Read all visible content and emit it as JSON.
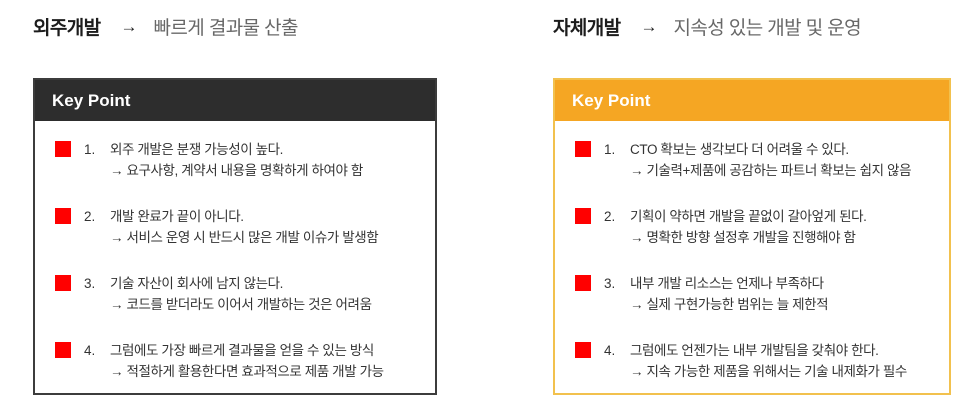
{
  "colors": {
    "left_header_bg": "#2D2D2D",
    "left_panel_border": "#3C3C3C",
    "right_header_bg": "#F5A623",
    "right_panel_border": "#F2C14E",
    "bullet_red": "#FF0000",
    "header_text": "#FFFFFF",
    "title_text": "#1C1C1C",
    "subtitle_text": "#686868",
    "body_text": "#333333",
    "background": "#FFFFFF"
  },
  "panels": [
    {
      "title": "외주개발",
      "arrow": "→",
      "subtitle": "빠르게 결과물 산출",
      "header": "Key Point",
      "items": [
        {
          "num": "1.",
          "line1": "외주 개발은 분쟁 가능성이 높다.",
          "line2": "→ 요구사항, 계약서 내용을 명확하게 하여야 함"
        },
        {
          "num": "2.",
          "line1": "개발 완료가 끝이 아니다.",
          "line2": "→ 서비스 운영 시 반드시 많은 개발 이슈가 발생함"
        },
        {
          "num": "3.",
          "line1": "기술 자산이 회사에 남지 않는다.",
          "line2": "→ 코드를 받더라도 이어서 개발하는 것은 어려움"
        },
        {
          "num": "4.",
          "line1": "그럼에도 가장 빠르게 결과물을 얻을 수 있는 방식",
          "line2": "→ 적절하게 활용한다면 효과적으로 제품 개발 가능"
        }
      ]
    },
    {
      "title": "자체개발",
      "arrow": "→",
      "subtitle": "지속성 있는 개발 및 운영",
      "header": "Key Point",
      "items": [
        {
          "num": "1.",
          "line1": "CTO 확보는 생각보다 더 어려울 수 있다.",
          "line2": "→ 기술력+제품에 공감하는 파트너 확보는 쉽지 않음"
        },
        {
          "num": "2.",
          "line1": "기획이 약하면 개발을 끝없이 갈아엎게 된다.",
          "line2": "→ 명확한 방향 설정후 개발을 진행해야 함"
        },
        {
          "num": "3.",
          "line1": "내부 개발 리소스는 언제나 부족하다",
          "line2": "→ 실제 구현가능한 범위는 늘 제한적"
        },
        {
          "num": "4.",
          "line1": "그럼에도 언젠가는 내부 개발팀을 갖춰야 한다.",
          "line2": "→ 지속 가능한 제품을 위해서는 기술 내제화가 필수"
        }
      ]
    }
  ]
}
